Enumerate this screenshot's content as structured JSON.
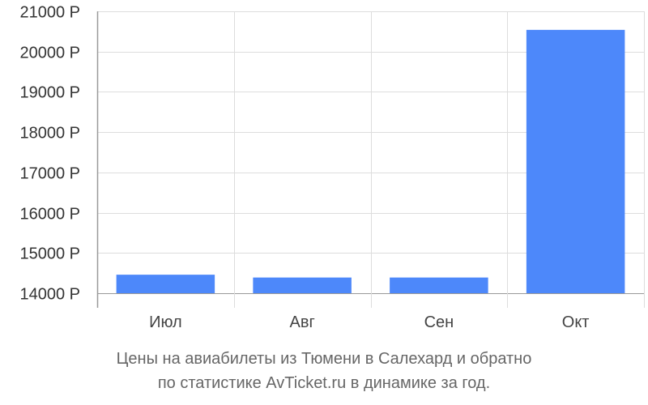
{
  "chart_data": {
    "type": "bar",
    "categories": [
      "Июл",
      "Авг",
      "Сен",
      "Окт"
    ],
    "values": [
      14460,
      14390,
      14390,
      20540
    ],
    "ylim": [
      14000,
      21000
    ],
    "yticks": [
      14000,
      15000,
      16000,
      17000,
      18000,
      19000,
      20000,
      21000
    ],
    "ytick_labels": [
      "14000 Р",
      "15000 Р",
      "16000 Р",
      "17000 Р",
      "18000 Р",
      "19000 Р",
      "20000 Р",
      "21000 Р"
    ],
    "grid": true,
    "bar_color": "#4d88fa",
    "grid_color": "#dddddd",
    "axis_color": "#999999"
  },
  "caption": {
    "line1": "Цены на авиабилеты из Тюмени в Салехард и обратно",
    "line2": "по статистике AvTicket.ru в динамике за год."
  }
}
